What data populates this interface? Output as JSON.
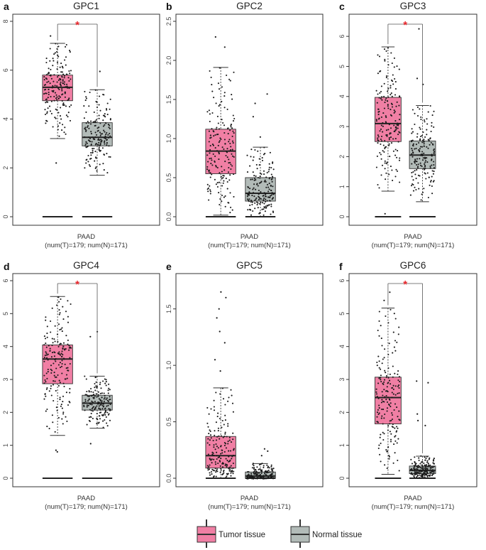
{
  "colors": {
    "tumor": "#F07FA4",
    "normal": "#B2BBB8",
    "point": "#1a1a1a",
    "significance": "#E8262B",
    "axis": "#444444"
  },
  "legend": {
    "tumor_label": "Tumor tissue",
    "normal_label": "Normal tissue"
  },
  "chart_data": [
    {
      "type": "boxplot",
      "panel": "a",
      "title": "GPC1",
      "xlabel_line1": "PAAD",
      "xlabel_line2": "(num(T)=179; num(N)=171)",
      "ylim": [
        0,
        8
      ],
      "yticks": [
        0,
        2,
        4,
        6,
        8
      ],
      "significant": true,
      "series": [
        {
          "name": "Tumor tissue",
          "min": 3.2,
          "q1": 4.75,
          "median": 5.3,
          "q3": 5.8,
          "max": 7.1,
          "outliers": [
            7.4,
            2.2
          ]
        },
        {
          "name": "Normal tissue",
          "min": 1.7,
          "q1": 2.9,
          "median": 3.25,
          "q3": 3.85,
          "max": 5.2,
          "outliers": [
            5.95
          ]
        }
      ]
    },
    {
      "type": "boxplot",
      "panel": "b",
      "title": "GPC2",
      "xlabel_line1": "PAAD",
      "xlabel_line2": "(num(T)=179; num(N)=171)",
      "ylim": [
        0,
        2.5
      ],
      "yticks": [
        0.0,
        0.5,
        1.0,
        1.5,
        2.0,
        2.5
      ],
      "significant": false,
      "series": [
        {
          "name": "Tumor tissue",
          "min": 0.02,
          "q1": 0.55,
          "median": 0.84,
          "q3": 1.12,
          "max": 1.91,
          "outliers": [
            2.3,
            2.17
          ]
        },
        {
          "name": "Normal tissue",
          "min": 0.0,
          "q1": 0.2,
          "median": 0.3,
          "q3": 0.5,
          "max": 0.89,
          "outliers": [
            1.57,
            1.45,
            1.28,
            1.02
          ]
        }
      ]
    },
    {
      "type": "boxplot",
      "panel": "c",
      "title": "GPC3",
      "xlabel_line1": "PAAD",
      "xlabel_line2": "(num(T)=179; num(N)=171)",
      "ylim": [
        0,
        6.5
      ],
      "yticks": [
        0,
        1,
        2,
        3,
        4,
        5,
        6
      ],
      "significant": true,
      "series": [
        {
          "name": "Tumor tissue",
          "min": 0.85,
          "q1": 2.5,
          "median": 3.1,
          "q3": 3.97,
          "max": 5.65,
          "outliers": [
            0.1
          ]
        },
        {
          "name": "Normal tissue",
          "min": 0.5,
          "q1": 1.6,
          "median": 2.05,
          "q3": 2.52,
          "max": 3.7,
          "outliers": [
            6.25,
            4.6,
            4.4
          ]
        }
      ]
    },
    {
      "type": "boxplot",
      "panel": "d",
      "title": "GPC4",
      "xlabel_line1": "PAAD",
      "xlabel_line2": "(num(T)=179; num(N)=171)",
      "ylim": [
        0,
        6
      ],
      "yticks": [
        0,
        1,
        2,
        3,
        4,
        5,
        6
      ],
      "significant": true,
      "series": [
        {
          "name": "Tumor tissue",
          "min": 1.3,
          "q1": 2.87,
          "median": 3.62,
          "q3": 4.05,
          "max": 5.52,
          "outliers": [
            0.85,
            0.8
          ]
        },
        {
          "name": "Normal tissue",
          "min": 1.52,
          "q1": 2.07,
          "median": 2.28,
          "q3": 2.52,
          "max": 3.1,
          "outliers": [
            4.45,
            4.3,
            1.05
          ]
        }
      ]
    },
    {
      "type": "boxplot",
      "panel": "e",
      "title": "GPC5",
      "xlabel_line1": "PAAD",
      "xlabel_line2": "(num(T)=179; num(N)=171)",
      "ylim": [
        0,
        1.75
      ],
      "yticks": [
        0.0,
        0.5,
        1.0,
        1.5
      ],
      "significant": false,
      "series": [
        {
          "name": "Tumor tissue",
          "min": 0.0,
          "q1": 0.09,
          "median": 0.2,
          "q3": 0.37,
          "max": 0.8,
          "outliers": [
            1.65,
            1.6,
            1.5,
            1.42,
            1.3,
            1.2,
            1.05,
            0.95
          ]
        },
        {
          "name": "Normal tissue",
          "min": 0.0,
          "q1": 0.0,
          "median": 0.02,
          "q3": 0.055,
          "max": 0.13,
          "outliers": [
            0.26,
            0.24,
            0.2
          ]
        }
      ]
    },
    {
      "type": "boxplot",
      "panel": "f",
      "title": "GPC6",
      "xlabel_line1": "PAAD",
      "xlabel_line2": "(num(T)=179; num(N)=171)",
      "ylim": [
        0,
        6
      ],
      "yticks": [
        0,
        1,
        2,
        3,
        4,
        5,
        6
      ],
      "significant": true,
      "series": [
        {
          "name": "Tumor tissue",
          "min": 0.12,
          "q1": 1.65,
          "median": 2.45,
          "q3": 3.07,
          "max": 5.17,
          "outliers": [
            5.65,
            5.4
          ]
        },
        {
          "name": "Normal tissue",
          "min": 0.0,
          "q1": 0.14,
          "median": 0.24,
          "q3": 0.37,
          "max": 0.67,
          "outliers": [
            2.95,
            2.9,
            1.95,
            1.75,
            1.6
          ]
        }
      ]
    }
  ]
}
